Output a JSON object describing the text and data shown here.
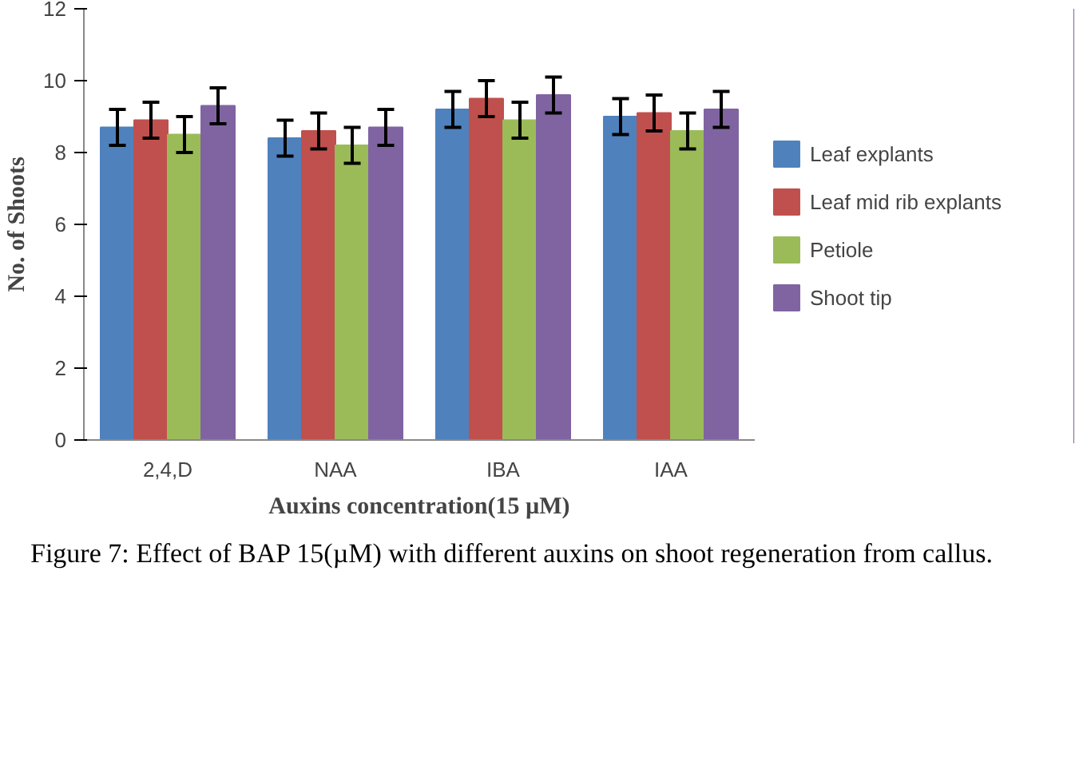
{
  "chart_data": {
    "type": "bar",
    "xlabel": "Auxins concentration(15 µM)",
    "ylabel": "No. of Shoots",
    "categories": [
      "2,4,D",
      "NAA",
      "IBA",
      "IAA"
    ],
    "series": [
      {
        "name": "Leaf explants",
        "color": "#4f81bd",
        "values": [
          8.7,
          8.4,
          9.2,
          9.0
        ],
        "errors": [
          0.5,
          0.5,
          0.5,
          0.5
        ]
      },
      {
        "name": "Leaf mid rib explants",
        "color": "#c0504d",
        "values": [
          8.9,
          8.6,
          9.5,
          9.1
        ],
        "errors": [
          0.5,
          0.5,
          0.5,
          0.5
        ]
      },
      {
        "name": "Petiole",
        "color": "#9bbb59",
        "values": [
          8.5,
          8.2,
          8.9,
          8.6
        ],
        "errors": [
          0.5,
          0.5,
          0.5,
          0.5
        ]
      },
      {
        "name": "Shoot tip",
        "color": "#8064a2",
        "values": [
          9.3,
          8.7,
          9.6,
          9.2
        ],
        "errors": [
          0.5,
          0.5,
          0.5,
          0.5
        ]
      }
    ],
    "ylim": [
      0,
      12
    ],
    "yticks": [
      0,
      2,
      4,
      6,
      8,
      10,
      12
    ],
    "grid": false,
    "legend": "right",
    "annotations": [
      "Figure 7: Effect of BAP 15(µM) with different auxins on shoot regeneration from callus."
    ]
  }
}
